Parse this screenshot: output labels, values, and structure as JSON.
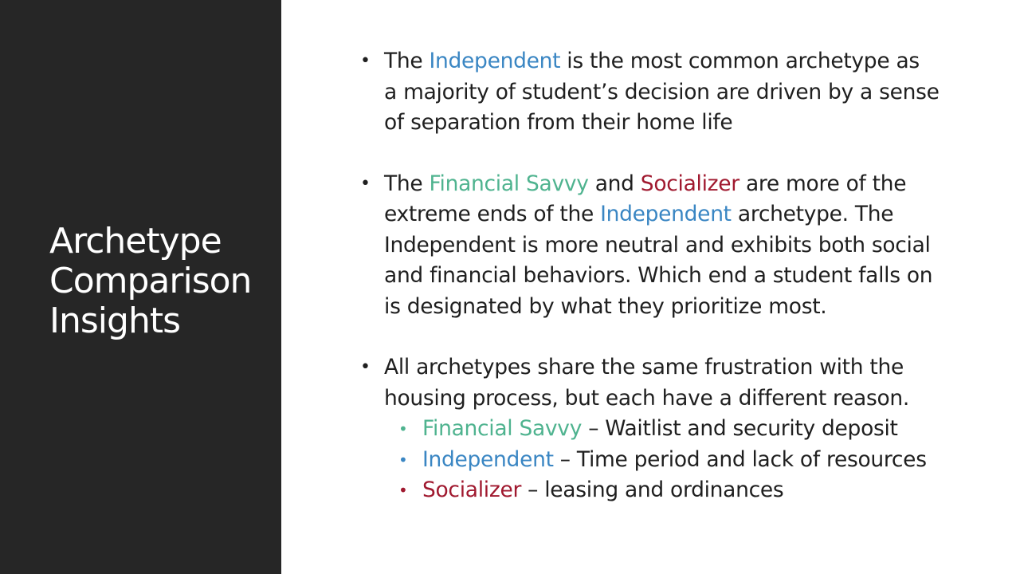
{
  "slide": {
    "title_lines": [
      "Archetype",
      "Comparison",
      "Insights"
    ]
  },
  "colors": {
    "independent": "#3a86c3",
    "financial_savvy": "#4fb38f",
    "socializer": "#a0192f",
    "panel": "#262626",
    "text": "#1f1f1f"
  },
  "bullets": [
    {
      "lines": [
        [
          {
            "text": "The "
          },
          {
            "text": "Independent",
            "accent": "independent"
          },
          {
            "text": " is the most common archetype as"
          }
        ],
        [
          {
            "text": "a majority of student’s decision are driven by a sense"
          }
        ],
        [
          {
            "text": "of separation from their home life"
          }
        ]
      ]
    },
    {
      "lines": [
        [
          {
            "text": "The "
          },
          {
            "text": "Financial Savvy",
            "accent": "financial_savvy"
          },
          {
            "text": " and "
          },
          {
            "text": "Socializer",
            "accent": "socializer"
          },
          {
            "text": " are more of the"
          }
        ],
        [
          {
            "text": "extreme ends of the "
          },
          {
            "text": "Independent",
            "accent": "independent"
          },
          {
            "text": " archetype. The"
          }
        ],
        [
          {
            "text": "Independent is more neutral and exhibits both social"
          }
        ],
        [
          {
            "text": "and financial behaviors. Which end a student falls on"
          }
        ],
        [
          {
            "text": "is designated by what they prioritize most."
          }
        ]
      ]
    },
    {
      "lines": [
        [
          {
            "text": "All archetypes share the same frustration with the"
          }
        ],
        [
          {
            "text": "housing process, but each have a different reason."
          }
        ]
      ],
      "sub_items": [
        {
          "name": "Financial Savvy",
          "accent": "financial_savvy",
          "reason": " – Waitlist and security deposit"
        },
        {
          "name": "Independent",
          "accent": "independent",
          "reason": " – Time period and lack of resources"
        },
        {
          "name": "Socializer",
          "accent": "socializer",
          "reason": " – leasing and ordinances"
        }
      ]
    }
  ]
}
